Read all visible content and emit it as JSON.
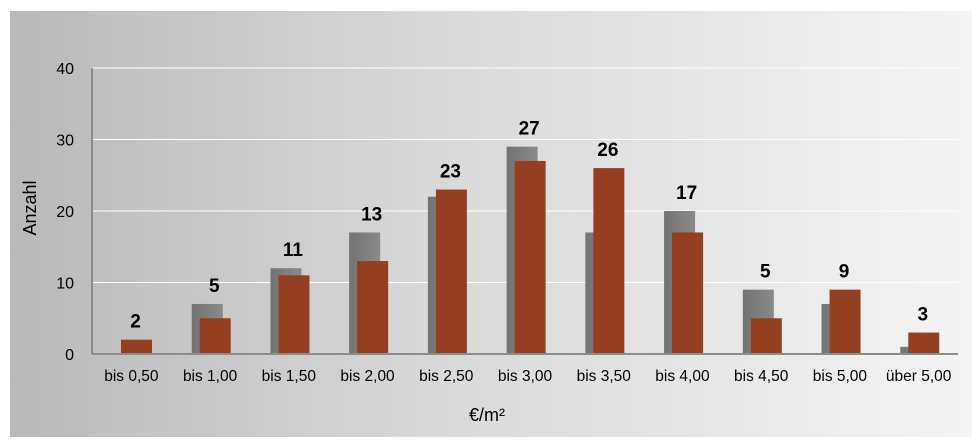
{
  "chart_data": {
    "type": "bar",
    "title": "",
    "xlabel": "€/m²",
    "ylabel": "Anzahl",
    "ylim": [
      0,
      40
    ],
    "yticks": [
      0,
      10,
      20,
      30,
      40
    ],
    "grid": true,
    "legend": "none",
    "categories": [
      "bis 0,50",
      "bis 1,00",
      "bis 1,50",
      "bis 2,00",
      "bis 2,50",
      "bis 3,00",
      "bis 3,50",
      "bis 4,00",
      "bis 4,50",
      "bis 5,00",
      "über 5,00"
    ],
    "series": [
      {
        "color": "#7f7f7f",
        "values": [
          0,
          7,
          12,
          17,
          22,
          29,
          17,
          20,
          9,
          7,
          1
        ]
      },
      {
        "color": "#943f22",
        "values": [
          2,
          5,
          11,
          13,
          23,
          27,
          26,
          17,
          5,
          9,
          3
        ],
        "data_labels": [
          "2",
          "5",
          "11",
          "13",
          "23",
          "27",
          "26",
          "17",
          "5",
          "9",
          "3"
        ]
      }
    ]
  }
}
